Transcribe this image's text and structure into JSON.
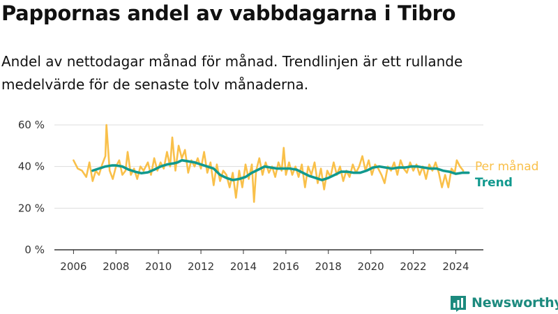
{
  "title": "Pappornas andel av vabbdagarna i Tibro",
  "subtitle": "Andel av nettodagar månad för månad. Trendlinjen är ett rullande medelvärde för de senaste tolv månaderna.",
  "brand": {
    "name": "Newsworthy",
    "icon": "bar-chart-logo-icon"
  },
  "colors": {
    "monthly": "#f9c04a",
    "trend": "#11998e",
    "grid": "#dddddd",
    "axis": "#333333",
    "brand": "#1c8a7e"
  },
  "chart_data": {
    "type": "line",
    "y_tick_labels": [
      "0 %",
      "20 %",
      "40 %",
      "60 %"
    ],
    "y_ticks": [
      0,
      20,
      40,
      60
    ],
    "x_tick_labels": [
      "2006",
      "2008",
      "2010",
      "2012",
      "2014",
      "2016",
      "2018",
      "2020",
      "2022",
      "2024"
    ],
    "x_ticks": [
      2006,
      2008,
      2010,
      2012,
      2014,
      2016,
      2018,
      2020,
      2022,
      2024
    ],
    "xlim": [
      2005.1,
      2025.3
    ],
    "ylim": [
      0,
      63
    ],
    "grid": true,
    "legend": "right",
    "series": [
      {
        "name": "Per månad",
        "color": "#f9c04a",
        "points": [
          [
            2006.0,
            43
          ],
          [
            2006.2,
            39
          ],
          [
            2006.4,
            38
          ],
          [
            2006.6,
            35
          ],
          [
            2006.75,
            42
          ],
          [
            2006.9,
            33
          ],
          [
            2007.05,
            38
          ],
          [
            2007.2,
            36
          ],
          [
            2007.35,
            41
          ],
          [
            2007.5,
            45
          ],
          [
            2007.55,
            60
          ],
          [
            2007.7,
            38
          ],
          [
            2007.85,
            34
          ],
          [
            2008.0,
            40
          ],
          [
            2008.15,
            43
          ],
          [
            2008.3,
            36
          ],
          [
            2008.45,
            38
          ],
          [
            2008.55,
            47
          ],
          [
            2008.7,
            36
          ],
          [
            2008.85,
            39
          ],
          [
            2009.0,
            34
          ],
          [
            2009.15,
            40
          ],
          [
            2009.3,
            38
          ],
          [
            2009.5,
            42
          ],
          [
            2009.65,
            36
          ],
          [
            2009.8,
            44
          ],
          [
            2009.95,
            38
          ],
          [
            2010.1,
            42
          ],
          [
            2010.25,
            39
          ],
          [
            2010.4,
            47
          ],
          [
            2010.55,
            40
          ],
          [
            2010.65,
            54
          ],
          [
            2010.8,
            38
          ],
          [
            2010.95,
            50
          ],
          [
            2011.1,
            44
          ],
          [
            2011.25,
            48
          ],
          [
            2011.4,
            37
          ],
          [
            2011.55,
            43
          ],
          [
            2011.7,
            40
          ],
          [
            2011.85,
            44
          ],
          [
            2012.0,
            39
          ],
          [
            2012.15,
            47
          ],
          [
            2012.3,
            37
          ],
          [
            2012.45,
            42
          ],
          [
            2012.6,
            31
          ],
          [
            2012.75,
            41
          ],
          [
            2012.9,
            33
          ],
          [
            2013.05,
            38
          ],
          [
            2013.2,
            36
          ],
          [
            2013.35,
            30
          ],
          [
            2013.5,
            37
          ],
          [
            2013.65,
            25
          ],
          [
            2013.8,
            38
          ],
          [
            2013.95,
            30
          ],
          [
            2014.1,
            41
          ],
          [
            2014.25,
            34
          ],
          [
            2014.4,
            41
          ],
          [
            2014.5,
            23
          ],
          [
            2014.6,
            38
          ],
          [
            2014.75,
            44
          ],
          [
            2014.9,
            36
          ],
          [
            2015.05,
            42
          ],
          [
            2015.2,
            37
          ],
          [
            2015.35,
            40
          ],
          [
            2015.5,
            35
          ],
          [
            2015.65,
            42
          ],
          [
            2015.8,
            38
          ],
          [
            2015.9,
            49
          ],
          [
            2016.0,
            36
          ],
          [
            2016.15,
            42
          ],
          [
            2016.3,
            36
          ],
          [
            2016.45,
            40
          ],
          [
            2016.6,
            35
          ],
          [
            2016.75,
            41
          ],
          [
            2016.9,
            30
          ],
          [
            2017.05,
            40
          ],
          [
            2017.2,
            36
          ],
          [
            2017.35,
            42
          ],
          [
            2017.5,
            32
          ],
          [
            2017.65,
            39
          ],
          [
            2017.8,
            29
          ],
          [
            2017.95,
            38
          ],
          [
            2018.1,
            35
          ],
          [
            2018.25,
            42
          ],
          [
            2018.4,
            36
          ],
          [
            2018.55,
            40
          ],
          [
            2018.7,
            33
          ],
          [
            2018.85,
            38
          ],
          [
            2019.0,
            35
          ],
          [
            2019.15,
            41
          ],
          [
            2019.3,
            37
          ],
          [
            2019.45,
            40
          ],
          [
            2019.6,
            45
          ],
          [
            2019.75,
            38
          ],
          [
            2019.9,
            43
          ],
          [
            2020.05,
            36
          ],
          [
            2020.2,
            41
          ],
          [
            2020.35,
            39
          ],
          [
            2020.5,
            36
          ],
          [
            2020.65,
            32
          ],
          [
            2020.8,
            40
          ],
          [
            2020.95,
            38
          ],
          [
            2021.1,
            42
          ],
          [
            2021.25,
            36
          ],
          [
            2021.4,
            43
          ],
          [
            2021.55,
            39
          ],
          [
            2021.7,
            37
          ],
          [
            2021.85,
            42
          ],
          [
            2022.0,
            38
          ],
          [
            2022.15,
            41
          ],
          [
            2022.3,
            36
          ],
          [
            2022.45,
            40
          ],
          [
            2022.6,
            34
          ],
          [
            2022.75,
            41
          ],
          [
            2022.9,
            38
          ],
          [
            2023.05,
            42
          ],
          [
            2023.2,
            37
          ],
          [
            2023.35,
            30
          ],
          [
            2023.5,
            36
          ],
          [
            2023.65,
            30
          ],
          [
            2023.8,
            39
          ],
          [
            2023.95,
            37
          ],
          [
            2024.05,
            43
          ],
          [
            2024.2,
            40
          ],
          [
            2024.35,
            38
          ]
        ]
      },
      {
        "name": "Trend",
        "color": "#11998e",
        "points": [
          [
            2006.9,
            38
          ],
          [
            2007.2,
            39
          ],
          [
            2007.5,
            40
          ],
          [
            2007.8,
            40.5
          ],
          [
            2008.0,
            40.5
          ],
          [
            2008.3,
            40
          ],
          [
            2008.6,
            38.5
          ],
          [
            2008.9,
            37.5
          ],
          [
            2009.2,
            36.8
          ],
          [
            2009.5,
            37.2
          ],
          [
            2009.8,
            38.5
          ],
          [
            2010.1,
            40
          ],
          [
            2010.4,
            41
          ],
          [
            2010.7,
            41.5
          ],
          [
            2010.9,
            42
          ],
          [
            2011.1,
            43
          ],
          [
            2011.4,
            42.5
          ],
          [
            2011.7,
            42
          ],
          [
            2012.0,
            41
          ],
          [
            2012.3,
            40
          ],
          [
            2012.6,
            39
          ],
          [
            2012.9,
            36
          ],
          [
            2013.2,
            34.5
          ],
          [
            2013.5,
            33.5
          ],
          [
            2013.8,
            34
          ],
          [
            2014.1,
            35
          ],
          [
            2014.4,
            37
          ],
          [
            2014.7,
            38.5
          ],
          [
            2015.0,
            40
          ],
          [
            2015.3,
            39.5
          ],
          [
            2015.6,
            39
          ],
          [
            2015.9,
            39
          ],
          [
            2016.2,
            39
          ],
          [
            2016.5,
            38.5
          ],
          [
            2016.8,
            37
          ],
          [
            2017.1,
            35.5
          ],
          [
            2017.4,
            34.5
          ],
          [
            2017.7,
            33.5
          ],
          [
            2018.0,
            34.5
          ],
          [
            2018.3,
            36
          ],
          [
            2018.6,
            37.5
          ],
          [
            2018.9,
            37.5
          ],
          [
            2019.2,
            37
          ],
          [
            2019.5,
            37
          ],
          [
            2019.8,
            38
          ],
          [
            2020.1,
            39.5
          ],
          [
            2020.4,
            40
          ],
          [
            2020.7,
            39.5
          ],
          [
            2021.0,
            39
          ],
          [
            2021.3,
            39.5
          ],
          [
            2021.6,
            39.5
          ],
          [
            2021.9,
            40
          ],
          [
            2022.2,
            40
          ],
          [
            2022.5,
            39.5
          ],
          [
            2022.8,
            39
          ],
          [
            2023.1,
            39
          ],
          [
            2023.4,
            38
          ],
          [
            2023.7,
            37.5
          ],
          [
            2024.0,
            36.5
          ],
          [
            2024.3,
            37
          ],
          [
            2024.6,
            37
          ]
        ]
      }
    ]
  }
}
